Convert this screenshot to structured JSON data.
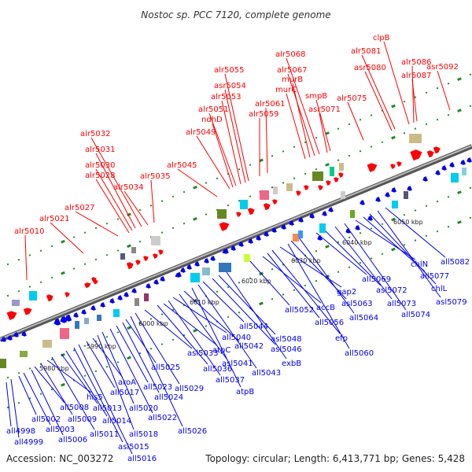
{
  "title": "Nostoc sp. PCC 7120, complete genome",
  "footer": {
    "accession_label": "Accession:",
    "accession": "NC_003272",
    "topology_label": "Topology:",
    "topology": "circular",
    "length_label": "Length:",
    "length": "6,413,771 bp",
    "genes_label": "Genes:",
    "genes": "5,428"
  },
  "colors": {
    "forward_strand": "#ff0000",
    "reverse_strand": "#0000ee",
    "backbone": "#999999",
    "tick": "#228b22"
  },
  "kbp_ticks": [
    "5980 kbp",
    "5990 kbp",
    "6000 kbp",
    "6010 kbp",
    "6020 kbp",
    "6030 kbp",
    "6040 kbp",
    "6050 kbp"
  ],
  "forward_labels": [
    "alr5010",
    "alr5021",
    "alr5027",
    "alr5028",
    "alr5030",
    "alr5031",
    "alr5032",
    "alr5034",
    "alr5035",
    "alr5045",
    "alr5049",
    "ndhD",
    "alr5051",
    "alr5053",
    "asr5054",
    "alr5055",
    "alr5059",
    "alr5061",
    "murC",
    "murB",
    "alr5067",
    "alr5068",
    "asr5071",
    "smpB",
    "alr5075",
    "asr5080",
    "alr5081",
    "clpB",
    "alr5086",
    "alr5087",
    "asr5092"
  ],
  "reverse_labels": [
    "all4998",
    "all4999",
    "all5002",
    "all5003",
    "all5006",
    "all5008",
    "all5009",
    "his5",
    "all5011",
    "all5013",
    "all5014",
    "asl5015",
    "all5016",
    "all5017",
    "aroA",
    "all5018",
    "all5020",
    "all5022",
    "all5023",
    "all5024",
    "all5025",
    "all5026",
    "all5029",
    "asl5033",
    "all5036",
    "atpC",
    "all5037",
    "all5040",
    "asl5041",
    "all5042",
    "atpB",
    "all5043",
    "all5044",
    "asl5046",
    "asl5048",
    "exbB",
    "all5052",
    "accB",
    "all5056",
    "efp",
    "gap2",
    "all5060",
    "asl5063",
    "all5064",
    "all5069",
    "asl5072",
    "all5073",
    "all5074",
    "chlN",
    "all5077",
    "chlL",
    "asl5079",
    "all5082"
  ]
}
